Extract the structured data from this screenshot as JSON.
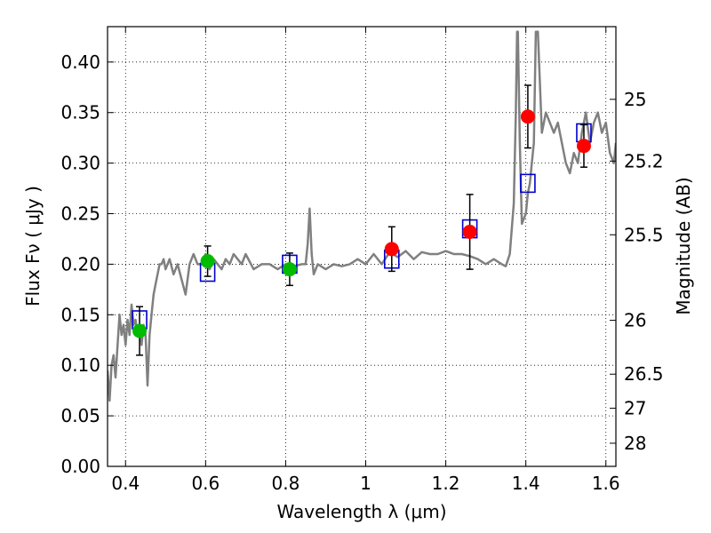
{
  "chart_data": {
    "type": "scatter",
    "xlabel": "Wavelength  λ (μm)",
    "ylabel": "Flux  Fν  ( μJy )",
    "ylabel_right": "Magnitude (AB)",
    "xlim": [
      0.355,
      1.625
    ],
    "ylim": [
      0.0,
      0.435
    ],
    "grid": true,
    "x_ticks": [
      0.4,
      0.6,
      0.8,
      1.0,
      1.2,
      1.4,
      1.6
    ],
    "x_tick_labels": [
      "0.4",
      "0.6",
      "0.8",
      "1",
      "1.2",
      "1.4",
      "1.6"
    ],
    "y_ticks": [
      0.0,
      0.05,
      0.1,
      0.15,
      0.2,
      0.25,
      0.3,
      0.35,
      0.4
    ],
    "y_tick_labels": [
      "0.00",
      "0.05",
      "0.10",
      "0.15",
      "0.20",
      "0.25",
      "0.30",
      "0.35",
      "0.40"
    ],
    "mag_ticks": [
      {
        "label": "25",
        "flux": 0.3631
      },
      {
        "label": "25.2",
        "flux": 0.302
      },
      {
        "label": "25.5",
        "flux": 0.2291
      },
      {
        "label": "26",
        "flux": 0.1445
      },
      {
        "label": "26.5",
        "flux": 0.0912
      },
      {
        "label": "27",
        "flux": 0.0575
      },
      {
        "label": "28",
        "flux": 0.0229
      }
    ],
    "series": [
      {
        "kind": "spectrum",
        "color": "#808080",
        "x": [
          0.355,
          0.36,
          0.365,
          0.37,
          0.375,
          0.38,
          0.385,
          0.39,
          0.395,
          0.4,
          0.405,
          0.41,
          0.415,
          0.42,
          0.425,
          0.43,
          0.435,
          0.44,
          0.445,
          0.45,
          0.455,
          0.46,
          0.465,
          0.47,
          0.475,
          0.48,
          0.485,
          0.49,
          0.495,
          0.5,
          0.51,
          0.52,
          0.53,
          0.54,
          0.55,
          0.56,
          0.57,
          0.58,
          0.59,
          0.6,
          0.61,
          0.62,
          0.63,
          0.64,
          0.65,
          0.66,
          0.67,
          0.68,
          0.69,
          0.7,
          0.72,
          0.74,
          0.76,
          0.78,
          0.8,
          0.82,
          0.84,
          0.85,
          0.855,
          0.86,
          0.865,
          0.87,
          0.88,
          0.9,
          0.92,
          0.94,
          0.96,
          0.98,
          1.0,
          1.02,
          1.04,
          1.06,
          1.08,
          1.1,
          1.12,
          1.14,
          1.16,
          1.18,
          1.2,
          1.22,
          1.24,
          1.26,
          1.28,
          1.3,
          1.32,
          1.34,
          1.35,
          1.36,
          1.37,
          1.375,
          1.378,
          1.38,
          1.385,
          1.39,
          1.395,
          1.4,
          1.405,
          1.41,
          1.415,
          1.42,
          1.425,
          1.43,
          1.44,
          1.45,
          1.46,
          1.47,
          1.48,
          1.49,
          1.5,
          1.51,
          1.52,
          1.53,
          1.54,
          1.55,
          1.56,
          1.57,
          1.58,
          1.59,
          1.6,
          1.61,
          1.62,
          1.625
        ],
        "y": [
          0.095,
          0.065,
          0.1,
          0.11,
          0.088,
          0.12,
          0.15,
          0.13,
          0.14,
          0.12,
          0.145,
          0.13,
          0.16,
          0.14,
          0.145,
          0.13,
          0.14,
          0.12,
          0.14,
          0.13,
          0.08,
          0.13,
          0.15,
          0.17,
          0.18,
          0.19,
          0.2,
          0.2,
          0.205,
          0.195,
          0.205,
          0.19,
          0.2,
          0.185,
          0.17,
          0.2,
          0.21,
          0.2,
          0.2,
          0.21,
          0.195,
          0.205,
          0.2,
          0.195,
          0.205,
          0.2,
          0.21,
          0.205,
          0.2,
          0.21,
          0.195,
          0.2,
          0.2,
          0.195,
          0.2,
          0.198,
          0.2,
          0.2,
          0.22,
          0.255,
          0.21,
          0.19,
          0.2,
          0.195,
          0.2,
          0.198,
          0.2,
          0.205,
          0.2,
          0.21,
          0.2,
          0.212,
          0.207,
          0.213,
          0.205,
          0.212,
          0.21,
          0.21,
          0.213,
          0.21,
          0.21,
          0.208,
          0.205,
          0.2,
          0.205,
          0.2,
          0.198,
          0.21,
          0.26,
          0.35,
          0.43,
          0.43,
          0.32,
          0.24,
          0.245,
          0.25,
          0.27,
          0.28,
          0.3,
          0.32,
          0.43,
          0.43,
          0.33,
          0.35,
          0.34,
          0.33,
          0.34,
          0.32,
          0.3,
          0.29,
          0.31,
          0.3,
          0.33,
          0.35,
          0.32,
          0.34,
          0.35,
          0.33,
          0.34,
          0.31,
          0.3,
          0.32
        ]
      },
      {
        "kind": "model-boxes",
        "color": "#0000cc",
        "x": [
          0.435,
          0.605,
          0.81,
          1.065,
          1.26,
          1.405,
          1.545
        ],
        "y": [
          0.145,
          0.192,
          0.2,
          0.205,
          0.235,
          0.28,
          0.33
        ]
      },
      {
        "kind": "points",
        "color": "#00bb00",
        "x": [
          0.435,
          0.605,
          0.81
        ],
        "y": [
          0.134,
          0.203,
          0.195
        ],
        "err": [
          0.024,
          0.015,
          0.016
        ]
      },
      {
        "kind": "points",
        "color": "#ff0000",
        "x": [
          1.065,
          1.26,
          1.405,
          1.545
        ],
        "y": [
          0.215,
          0.232,
          0.346,
          0.317
        ],
        "err": [
          0.022,
          0.037,
          0.031,
          0.021
        ]
      }
    ]
  }
}
